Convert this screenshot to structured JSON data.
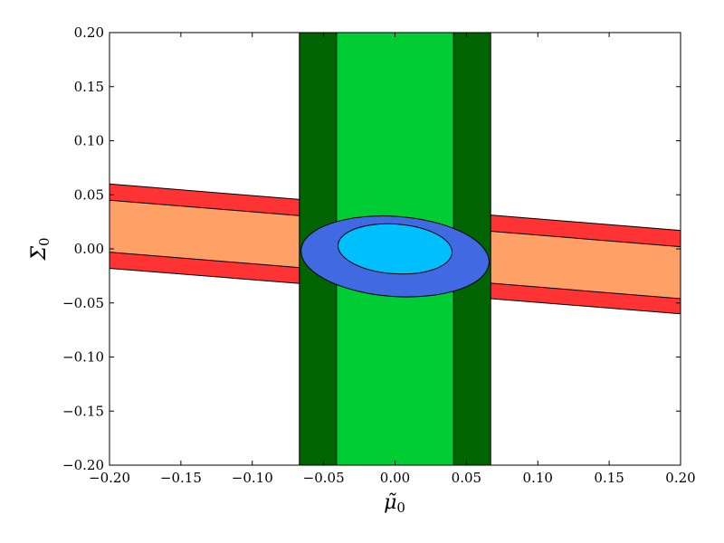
{
  "chart_data": {
    "type": "area",
    "title": "",
    "xlabel": {
      "symbol": "μ̃",
      "subscript": "0"
    },
    "ylabel": {
      "symbol": "Σ",
      "subscript": "0"
    },
    "xlim": [
      -0.2,
      0.2
    ],
    "ylim": [
      -0.2,
      0.2
    ],
    "grid": false,
    "xticks": [
      -0.2,
      -0.15,
      -0.1,
      -0.05,
      0.0,
      0.05,
      0.1,
      0.15,
      0.2
    ],
    "yticks": [
      -0.2,
      -0.15,
      -0.1,
      -0.05,
      0.0,
      0.05,
      0.1,
      0.15,
      0.2
    ],
    "xtick_labels": [
      "−0.20",
      "−0.15",
      "−0.10",
      "−0.05",
      "0.00",
      "0.05",
      "0.10",
      "0.15",
      "0.20"
    ],
    "ytick_labels": [
      "−0.20",
      "−0.15",
      "−0.10",
      "−0.05",
      "0.00",
      "0.05",
      "0.10",
      "0.15",
      "0.20"
    ],
    "vertical_bands": [
      {
        "x_min": -0.067,
        "x_max": 0.067,
        "color": "#006400"
      },
      {
        "x_min": -0.041,
        "x_max": 0.041,
        "color": "#00CC33"
      }
    ],
    "tilted_bands": [
      {
        "color": "#FF3333",
        "upper": [
          [
            -0.2,
            0.06
          ],
          [
            0.2,
            0.017
          ]
        ],
        "lower": [
          [
            -0.2,
            -0.018
          ],
          [
            0.2,
            -0.06
          ]
        ]
      },
      {
        "color": "#FFA066",
        "upper": [
          [
            -0.2,
            0.045
          ],
          [
            0.2,
            0.002
          ]
        ],
        "lower": [
          [
            -0.2,
            -0.003
          ],
          [
            0.2,
            -0.046
          ]
        ]
      }
    ],
    "ellipses": [
      {
        "cx": 0.0,
        "cy": -0.007,
        "rx": 0.066,
        "ry": 0.037,
        "angle_deg": -4,
        "color": "#4169E1"
      },
      {
        "cx": 0.0,
        "cy": 0.0,
        "rx": 0.04,
        "ry": 0.023,
        "angle_deg": -4,
        "color": "#00BFFF"
      }
    ]
  }
}
